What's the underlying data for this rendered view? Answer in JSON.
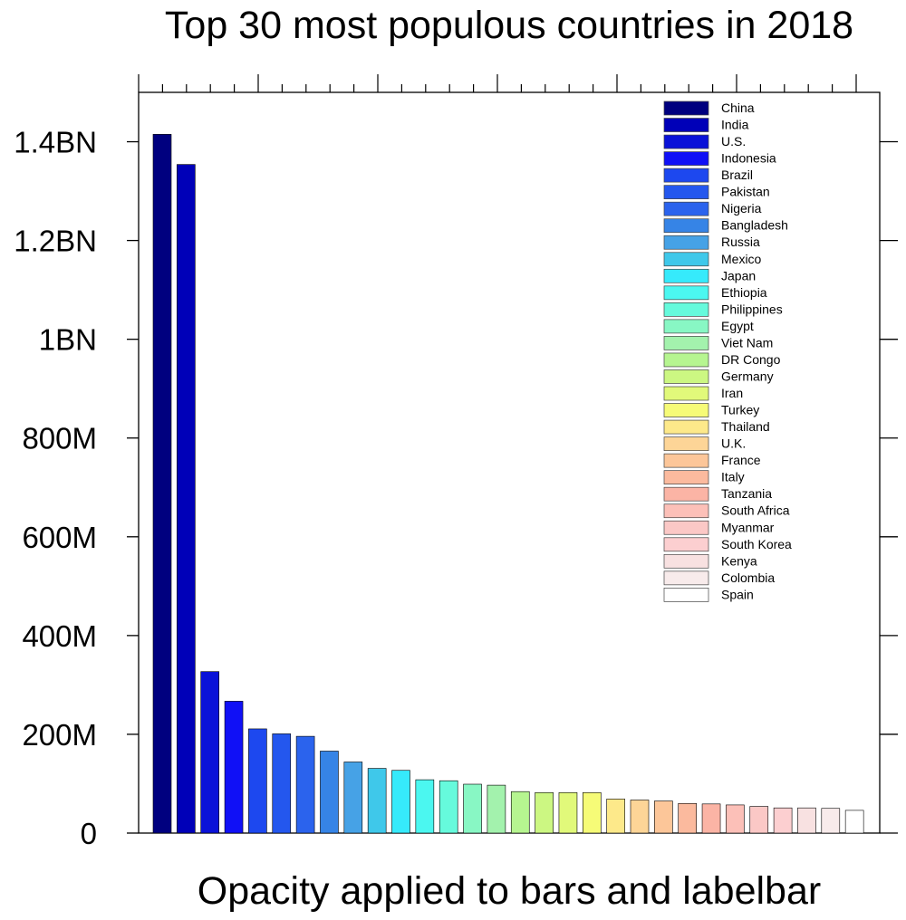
{
  "chart_data": {
    "type": "bar",
    "title": "Top 30 most populous countries in 2018",
    "xlabel": "Opacity applied to bars and labelbar",
    "ylabel": "",
    "ylim": [
      0,
      1500000000
    ],
    "yticks": [
      {
        "value": 0,
        "label": "0"
      },
      {
        "value": 200000000,
        "label": "200M"
      },
      {
        "value": 400000000,
        "label": "400M"
      },
      {
        "value": 600000000,
        "label": "600M"
      },
      {
        "value": 800000000,
        "label": "800M"
      },
      {
        "value": 1000000000,
        "label": "1BN"
      },
      {
        "value": 1200000000,
        "label": "1.2BN"
      },
      {
        "value": 1400000000,
        "label": "1.4BN"
      }
    ],
    "legend_position": "top-right",
    "categories": [
      "China",
      "India",
      "U.S.",
      "Indonesia",
      "Brazil",
      "Pakistan",
      "Nigeria",
      "Bangladesh",
      "Russia",
      "Mexico",
      "Japan",
      "Ethiopia",
      "Philippines",
      "Egypt",
      "Viet Nam",
      "DR Congo",
      "Germany",
      "Iran",
      "Turkey",
      "Thailand",
      "U.K.",
      "France",
      "Italy",
      "Tanzania",
      "South Africa",
      "Myanmar",
      "South Korea",
      "Kenya",
      "Colombia",
      "Spain"
    ],
    "values": [
      1415000000,
      1354000000,
      327000000,
      267000000,
      211000000,
      201000000,
      196000000,
      166000000,
      144000000,
      131000000,
      127000000,
      108000000,
      106000000,
      99000000,
      97000000,
      84000000,
      82000000,
      82000000,
      82000000,
      69000000,
      67000000,
      65000000,
      60000000,
      59000000,
      57000000,
      54000000,
      51000000,
      51000000,
      50000000,
      46000000
    ],
    "colors": [
      "#00007f",
      "#0000b8",
      "#0a12d8",
      "#1010f6",
      "#1d48ef",
      "#2457ee",
      "#2b63ed",
      "#3684e6",
      "#46a2e6",
      "#3fc8ea",
      "#36eafb",
      "#4bf7f0",
      "#66fadc",
      "#88f7c4",
      "#a3f2ad",
      "#b6f590",
      "#ccf782",
      "#e1f97a",
      "#f6fb77",
      "#fde98a",
      "#fdd597",
      "#fcc699",
      "#fbba9e",
      "#fbb4a5",
      "#fcc0b8",
      "#fbc8c6",
      "#fccfd0",
      "#f8e1e1",
      "#f8ebeb",
      "#ffffff"
    ]
  }
}
